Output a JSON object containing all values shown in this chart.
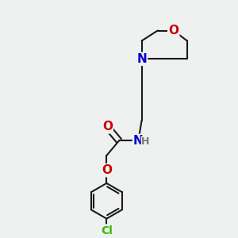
{
  "bg_color": "#eff1f1",
  "bond_color": "#1a1a1a",
  "bond_width": 1.5,
  "atom_colors": {
    "C": "#1a1a1a",
    "N": "#0000cc",
    "O": "#cc0000",
    "Cl": "#33bb00",
    "H": "#777777"
  },
  "font_size": 10,
  "fig_size": [
    3.0,
    3.0
  ],
  "dpi": 100
}
